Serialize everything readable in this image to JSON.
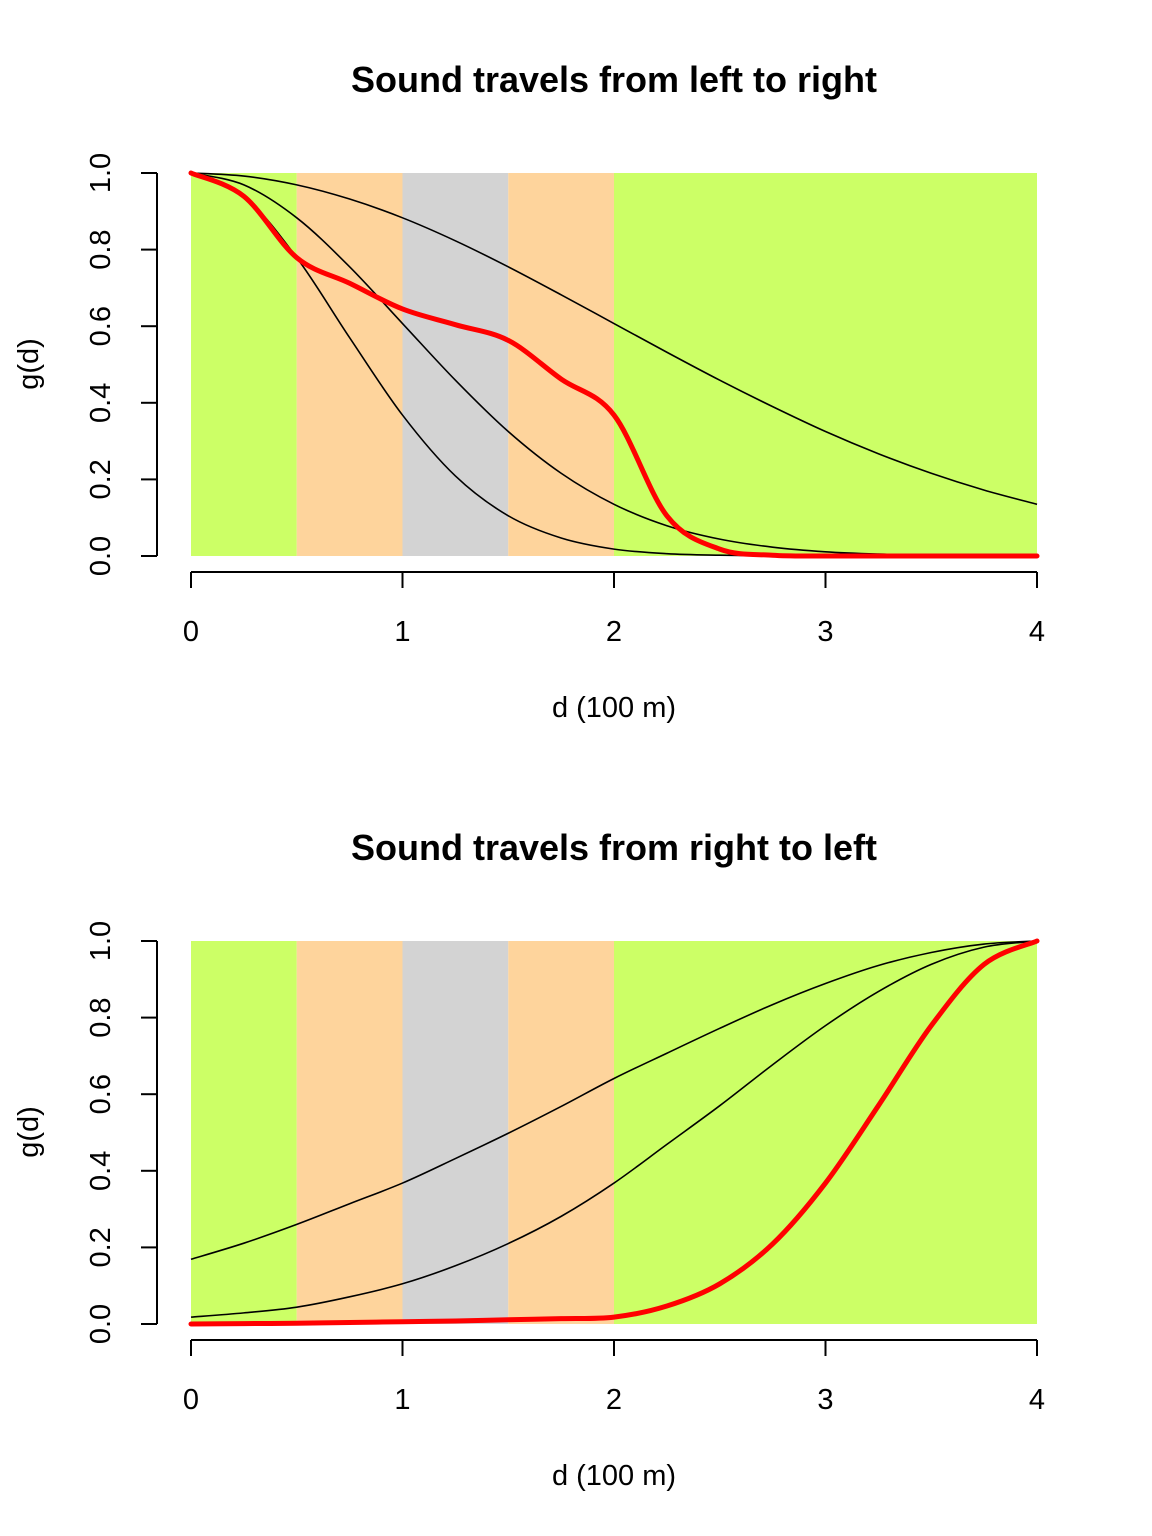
{
  "figure": {
    "background": "#ffffff"
  },
  "colors": {
    "band_outer": "#CCFF66",
    "band_mid": "#FED49C",
    "band_center": "#D3D3D3",
    "reference_line": "#000000",
    "highlight_line": "#FF0000"
  },
  "chart_data": [
    {
      "type": "line",
      "title": "Sound travels from left to right",
      "xlabel": "d (100 m)",
      "ylabel": "g(d)",
      "xlim": [
        0,
        4
      ],
      "ylim": [
        0,
        1
      ],
      "x_ticks": [
        "0",
        "1",
        "2",
        "3",
        "4"
      ],
      "y_ticks": [
        "0.0",
        "0.2",
        "0.4",
        "0.6",
        "0.8",
        "1.0"
      ],
      "grid": false,
      "bands": [
        {
          "from": 0,
          "to": 0.5,
          "color": "#CCFF66"
        },
        {
          "from": 0.5,
          "to": 1.0,
          "color": "#FED49C"
        },
        {
          "from": 1.0,
          "to": 1.5,
          "color": "#D3D3D3"
        },
        {
          "from": 1.5,
          "to": 2.0,
          "color": "#FED49C"
        },
        {
          "from": 2.0,
          "to": 4.0,
          "color": "#CCFF66"
        }
      ],
      "x": [
        0,
        0.25,
        0.5,
        0.75,
        1.0,
        1.25,
        1.5,
        1.75,
        2.0,
        2.25,
        2.5,
        2.75,
        3.0,
        3.25,
        3.5,
        3.75,
        4.0
      ],
      "series": [
        {
          "values": [
            1.0,
            0.992,
            0.969,
            0.932,
            0.883,
            0.823,
            0.755,
            0.682,
            0.607,
            0.532,
            0.459,
            0.39,
            0.325,
            0.267,
            0.216,
            0.172,
            0.135
          ],
          "color": "#000000"
        },
        {
          "values": [
            1.0,
            0.939,
            0.779,
            0.57,
            0.368,
            0.209,
            0.105,
            0.047,
            0.018,
            0.006,
            0.002,
            0.0005,
            0.0001,
            0.0,
            0.0,
            0.0,
            0.0
          ],
          "color": "#000000"
        },
        {
          "values": [
            1.0,
            0.969,
            0.883,
            0.755,
            0.607,
            0.459,
            0.325,
            0.216,
            0.135,
            0.079,
            0.044,
            0.023,
            0.011,
            0.005,
            0.002,
            0.001,
            0.0
          ],
          "color": "#000000"
        },
        {
          "values": [
            1.0,
            0.939,
            0.779,
            0.712,
            0.645,
            0.604,
            0.563,
            0.462,
            0.368,
            0.105,
            0.018,
            0.002,
            0.0001,
            0.0,
            0.0,
            0.0,
            0.0
          ],
          "color": "#FF0000",
          "highlight": true
        }
      ]
    },
    {
      "type": "line",
      "title": "Sound travels from right to left",
      "xlabel": "d (100 m)",
      "ylabel": "g(d)",
      "xlim": [
        0,
        4
      ],
      "ylim": [
        0,
        1
      ],
      "x_ticks": [
        "0",
        "1",
        "2",
        "3",
        "4"
      ],
      "y_ticks": [
        "0.0",
        "0.2",
        "0.4",
        "0.6",
        "0.8",
        "1.0"
      ],
      "grid": false,
      "bands": [
        {
          "from": 0,
          "to": 0.5,
          "color": "#CCFF66"
        },
        {
          "from": 0.5,
          "to": 1.0,
          "color": "#FED49C"
        },
        {
          "from": 1.0,
          "to": 1.5,
          "color": "#D3D3D3"
        },
        {
          "from": 1.5,
          "to": 2.0,
          "color": "#FED49C"
        },
        {
          "from": 2.0,
          "to": 4.0,
          "color": "#CCFF66"
        }
      ],
      "x": [
        0,
        0.25,
        0.5,
        0.75,
        1.0,
        1.25,
        1.5,
        1.75,
        2.0,
        2.25,
        2.5,
        2.75,
        3.0,
        3.25,
        3.5,
        3.75,
        4.0
      ],
      "series": [
        {
          "values": [
            0.169,
            0.211,
            0.26,
            0.314,
            0.368,
            0.432,
            0.498,
            0.568,
            0.641,
            0.707,
            0.772,
            0.834,
            0.889,
            0.936,
            0.97,
            0.992,
            1.0
          ],
          "color": "#000000"
        },
        {
          "values": [
            0.018,
            0.029,
            0.044,
            0.071,
            0.105,
            0.152,
            0.21,
            0.281,
            0.368,
            0.469,
            0.57,
            0.677,
            0.779,
            0.868,
            0.939,
            0.984,
            1.0
          ],
          "color": "#000000"
        },
        {
          "values": [
            0.0,
            0.001,
            0.002,
            0.004,
            0.006,
            0.008,
            0.011,
            0.014,
            0.018,
            0.047,
            0.105,
            0.209,
            0.368,
            0.57,
            0.779,
            0.939,
            1.0
          ],
          "color": "#FF0000",
          "highlight": true
        }
      ]
    }
  ]
}
